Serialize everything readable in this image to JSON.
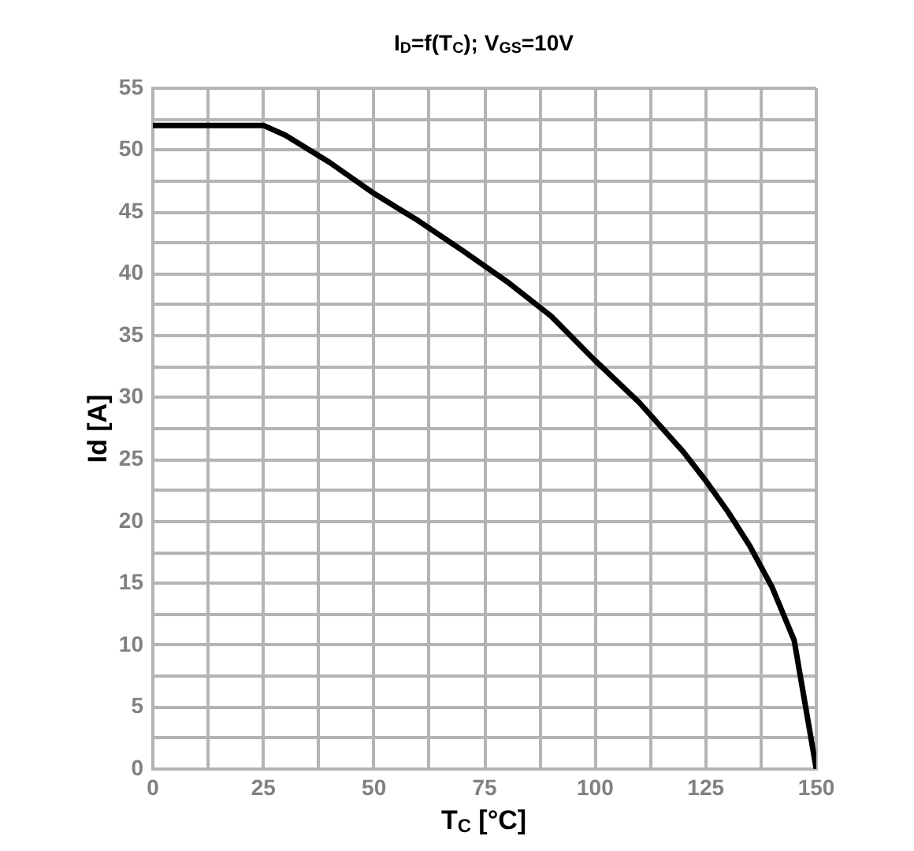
{
  "chart_data": {
    "type": "line",
    "title": "I$_{D}$=f(T$_{C}$); V$_{GS}$=10V",
    "xlabel": "T$_{C}$ [°C]",
    "ylabel": "Id [A]",
    "x": [
      0,
      25,
      30,
      40,
      50,
      60,
      70,
      80,
      90,
      100,
      110,
      120,
      125,
      130,
      135,
      140,
      145,
      150
    ],
    "series": [
      {
        "color": "#000000",
        "values": [
          52,
          52,
          51.2,
          49,
          46.5,
          44.3,
          41.9,
          39.4,
          36.6,
          33,
          29.6,
          25.6,
          23.3,
          20.8,
          18,
          14.7,
          10.4,
          0
        ]
      }
    ],
    "xlim": [
      0,
      150
    ],
    "xticks": [
      0,
      {
        "value": 12.5,
        "label": null
      },
      25,
      {
        "value": 37.5,
        "label": null
      },
      50,
      {
        "value": 62.5,
        "label": null
      },
      75,
      {
        "value": 87.5,
        "label": null
      },
      100,
      {
        "value": 112.5,
        "label": null
      },
      125,
      {
        "value": 137.5,
        "label": null
      },
      150
    ],
    "ylim": [
      0,
      55
    ],
    "yticks": [
      0,
      {
        "value": 2.5,
        "label": null
      },
      5,
      {
        "value": 7.5,
        "label": null
      },
      10,
      {
        "value": 12.5,
        "label": null
      },
      15,
      {
        "value": 17.5,
        "label": null
      },
      20,
      {
        "value": 22.5,
        "label": null
      },
      25,
      {
        "value": 27.5,
        "label": null
      },
      30,
      {
        "value": 32.5,
        "label": null
      },
      35,
      {
        "value": 37.5,
        "label": null
      },
      40,
      {
        "value": 42.5,
        "label": null
      },
      45,
      {
        "value": 47.5,
        "label": null
      },
      50,
      {
        "value": 52.5,
        "label": null
      },
      55
    ],
    "grid": true
  }
}
